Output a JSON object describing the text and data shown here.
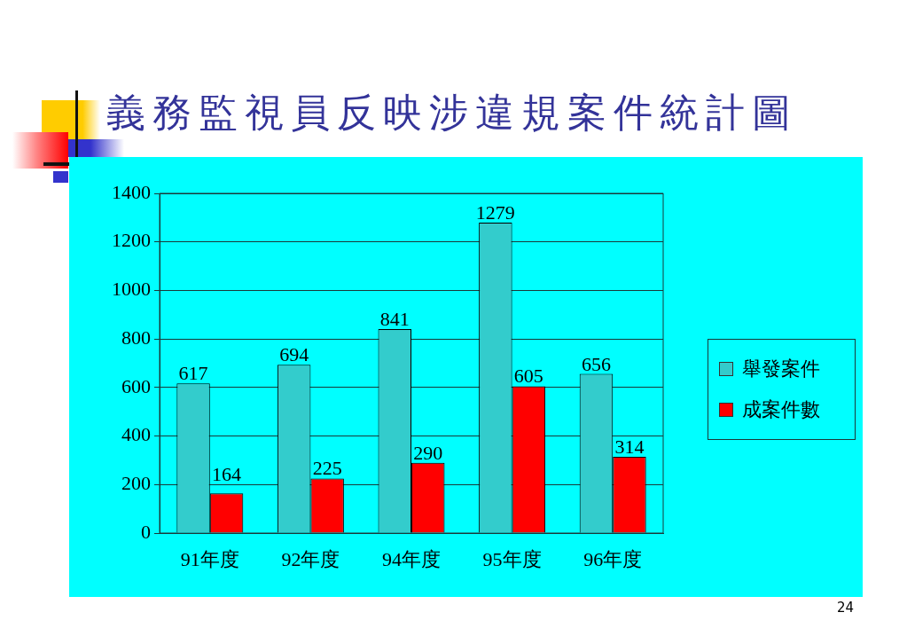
{
  "chart_data": {
    "type": "bar",
    "title": "義務監視員反映涉違規案件統計圖",
    "categories": [
      "91年度",
      "92年度",
      "94年度",
      "95年度",
      "96年度"
    ],
    "series": [
      {
        "name": "舉發案件",
        "color": "#33cccc",
        "values": [
          617,
          694,
          841,
          1279,
          656
        ]
      },
      {
        "name": "成案件數",
        "color": "#ff0000",
        "values": [
          164,
          225,
          290,
          605,
          314
        ]
      }
    ],
    "ylim": [
      0,
      1400
    ],
    "yticks": [
      0,
      200,
      400,
      600,
      800,
      1000,
      1200,
      1400
    ],
    "grid": "y",
    "legend": "right",
    "data_labels": true,
    "annotations": [
      "24"
    ]
  }
}
